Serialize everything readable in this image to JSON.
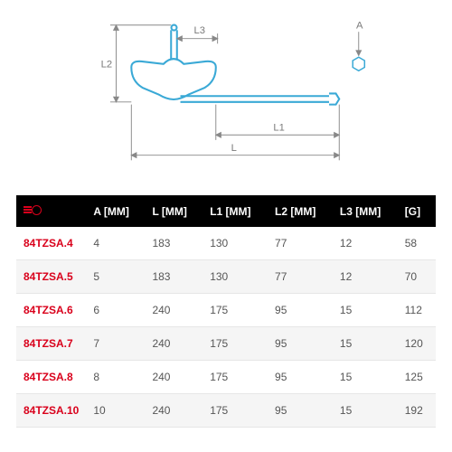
{
  "diagram": {
    "type": "technical-drawing",
    "labels": {
      "A": "A",
      "L": "L",
      "L1": "L1",
      "L2": "L2",
      "L3": "L3"
    },
    "stroke_color": "#3aa9d6",
    "label_color": "#7a7a7a",
    "dim_line_color": "#888888",
    "label_fontsize": 11,
    "background_color": "#ffffff"
  },
  "table": {
    "type": "table",
    "header_bg": "#000000",
    "header_fg": "#ffffff",
    "row_alt_bg": "#f5f5f5",
    "row_border": "#e6e6e6",
    "ref_color": "#d9001b",
    "cell_color": "#555555",
    "font_size": 12,
    "columns": [
      "",
      "A [MM]",
      "L [MM]",
      "L1 [MM]",
      "L2 [MM]",
      "L3 [MM]",
      "[G]"
    ],
    "rows": [
      {
        "ref": "84TZSA.4",
        "a": "4",
        "l": "183",
        "l1": "130",
        "l2": "77",
        "l3": "12",
        "g": "58"
      },
      {
        "ref": "84TZSA.5",
        "a": "5",
        "l": "183",
        "l1": "130",
        "l2": "77",
        "l3": "12",
        "g": "70"
      },
      {
        "ref": "84TZSA.6",
        "a": "6",
        "l": "240",
        "l1": "175",
        "l2": "95",
        "l3": "15",
        "g": "112"
      },
      {
        "ref": "84TZSA.7",
        "a": "7",
        "l": "240",
        "l1": "175",
        "l2": "95",
        "l3": "15",
        "g": "120"
      },
      {
        "ref": "84TZSA.8",
        "a": "8",
        "l": "240",
        "l1": "175",
        "l2": "95",
        "l3": "15",
        "g": "125"
      },
      {
        "ref": "84TZSA.10",
        "a": "10",
        "l": "240",
        "l1": "175",
        "l2": "95",
        "l3": "15",
        "g": "192"
      }
    ]
  }
}
